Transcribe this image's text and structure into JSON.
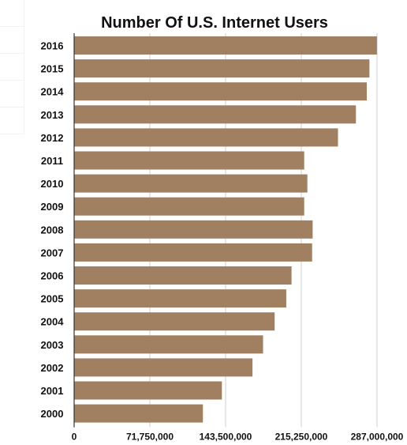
{
  "chart_data": {
    "type": "bar",
    "orientation": "horizontal",
    "title": "Number Of U.S. Internet Users",
    "xlabel": "",
    "ylabel": "",
    "categories": [
      "2016",
      "2015",
      "2014",
      "2013",
      "2012",
      "2011",
      "2010",
      "2009",
      "2008",
      "2007",
      "2006",
      "2005",
      "2004",
      "2003",
      "2002",
      "2001",
      "2000"
    ],
    "values": [
      286900000,
      279800000,
      277300000,
      267000000,
      250000000,
      218000000,
      221000000,
      218000000,
      226000000,
      225500000,
      206000000,
      201000000,
      190000000,
      179000000,
      169000000,
      140000000,
      122000000
    ],
    "xlim": [
      0,
      287000000
    ],
    "x_ticks": [
      0,
      71750000,
      143500000,
      215250000,
      287000000
    ],
    "x_tick_labels": [
      "0",
      "71,750,000",
      "143,500,000",
      "215,250,000",
      "287,000,000"
    ],
    "grid": true,
    "bar_color": "#a08061"
  }
}
